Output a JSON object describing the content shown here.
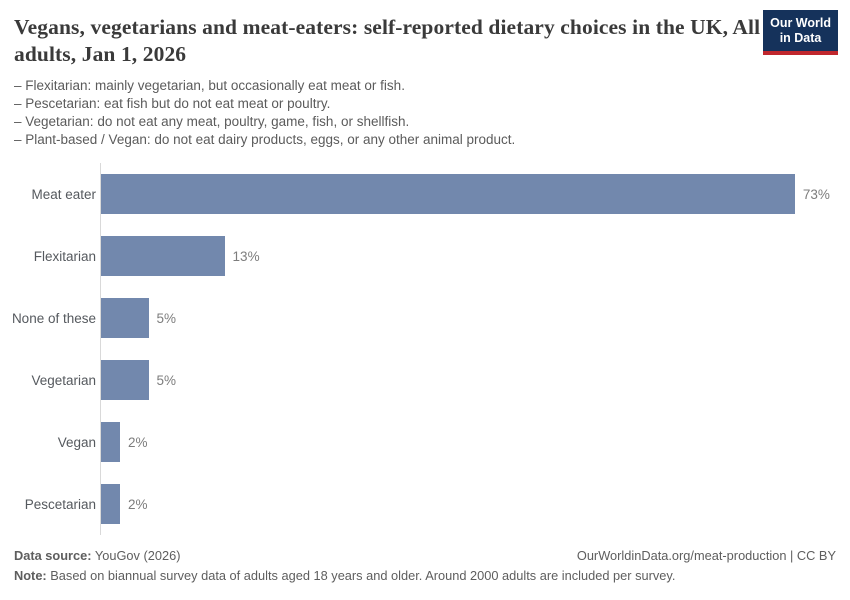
{
  "header": {
    "title": "Vegans, vegetarians and meat-eaters: self-reported dietary choices in the UK, All adults, Jan 1, 2026",
    "subtitle_lines": [
      "– Flexitarian: mainly vegetarian, but occasionally eat meat or fish.",
      "– Pescetarian: eat fish but do not eat meat or poultry.",
      "– Vegetarian: do not eat any meat, poultry, game, fish, or shellfish.",
      "– Plant-based / Vegan: do not eat dairy products, eggs, or any other animal product."
    ],
    "logo": {
      "line1": "Our World",
      "line2": "in Data",
      "bg_color": "#15325b",
      "accent_color": "#c0272d"
    }
  },
  "chart_data": {
    "type": "bar",
    "orientation": "horizontal",
    "title": "Vegans, vegetarians and meat-eaters: self-reported dietary choices in the UK, All adults, Jan 1, 2026",
    "categories": [
      "Meat eater",
      "Flexitarian",
      "None of these",
      "Vegetarian",
      "Vegan",
      "Pescetarian"
    ],
    "values": [
      73,
      13,
      5,
      5,
      2,
      2
    ],
    "value_labels": [
      "73%",
      "13%",
      "5%",
      "5%",
      "2%",
      "2%"
    ],
    "unit": "%",
    "bar_color": "#7288ad",
    "axis_line_color": "#d9d9d9",
    "grid": false,
    "legend": "none",
    "xlabel": "",
    "ylabel": ""
  },
  "footer": {
    "source_label": "Data source:",
    "source_value": "YouGov (2026)",
    "attribution": "OurWorldinData.org/meat-production | CC BY",
    "note_label": "Note:",
    "note_text": "Based on biannual survey data of adults aged 18 years and older. Around 2000 adults are included per survey."
  }
}
